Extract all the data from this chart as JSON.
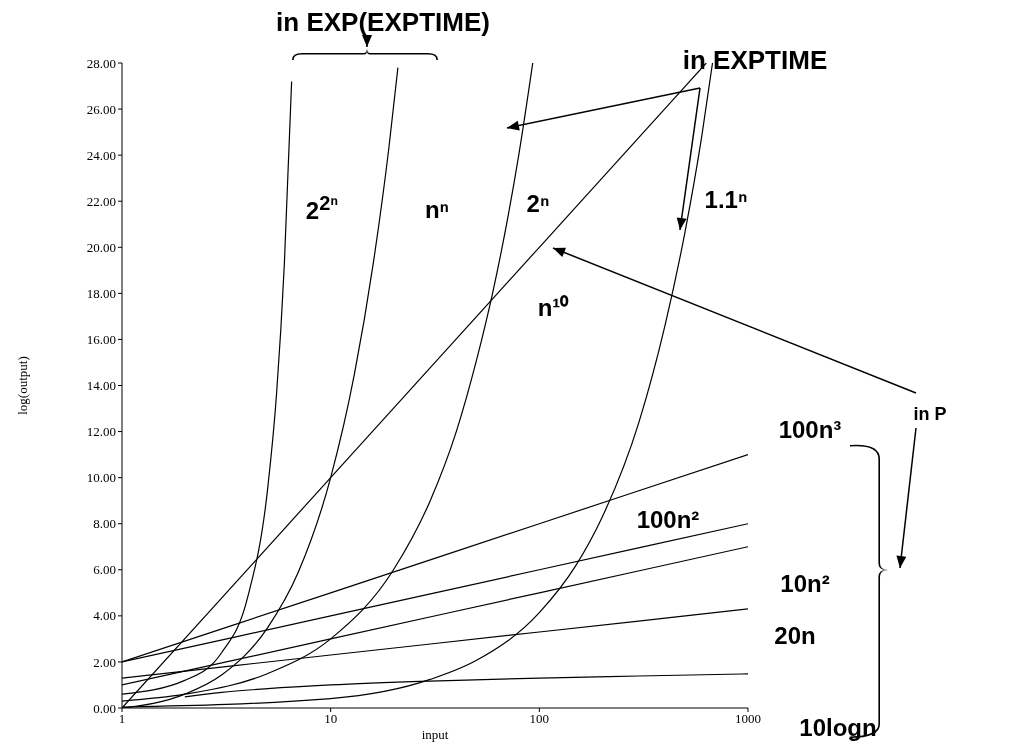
{
  "chart_data": {
    "type": "line",
    "xlabel": "input",
    "ylabel": "log(output)",
    "log": "x",
    "grid": false,
    "marker": "none",
    "line_style": "solid",
    "xlim": [
      1,
      1000
    ],
    "xticks": [
      1,
      10,
      100,
      1000
    ],
    "ylim": [
      0,
      28
    ],
    "yticks": [
      {
        "value": 0,
        "label": "0.00"
      },
      {
        "value": 2,
        "label": "2.00"
      },
      {
        "value": 4,
        "label": "4.00"
      },
      {
        "value": 6,
        "label": "6.00"
      },
      {
        "value": 8,
        "label": "8.00"
      },
      {
        "value": 10,
        "label": "10.00"
      },
      {
        "value": 12,
        "label": "12.00"
      },
      {
        "value": 14,
        "label": "14.00"
      },
      {
        "value": 16,
        "label": "16.00"
      },
      {
        "value": 18,
        "label": "18.00"
      },
      {
        "value": 20,
        "label": "20.00"
      },
      {
        "value": 22,
        "label": "22.00"
      },
      {
        "value": 24,
        "label": "24.00"
      },
      {
        "value": 26,
        "label": "26.00"
      },
      {
        "value": 28,
        "label": "28.00"
      }
    ],
    "series": [
      {
        "name": "2$^{2ⁿ}$",
        "color": "#000000",
        "x": [
          1,
          2,
          3,
          4,
          5,
          5.5,
          6,
          6.5
        ],
        "values": [
          0.6,
          1.2,
          2.4,
          4.8,
          9.6,
          13.6,
          19.3,
          27.2
        ]
      },
      {
        "name": "nⁿ",
        "color": "#000000",
        "x": [
          1,
          2,
          3,
          5,
          7,
          10,
          13,
          16,
          19,
          21
        ],
        "values": [
          0,
          0.6,
          1.43,
          3.5,
          5.9,
          10,
          14.5,
          19.3,
          24.3,
          27.8
        ]
      },
      {
        "name": "2ⁿ",
        "color": "#000000",
        "x": [
          1,
          2,
          5,
          10,
          20,
          30,
          40,
          50,
          60,
          70,
          80,
          93
        ],
        "values": [
          0.3,
          0.6,
          1.5,
          3,
          6,
          9,
          12,
          15.1,
          18.1,
          21.1,
          24.1,
          28
        ]
      },
      {
        "name": "n¹⁰",
        "color": "#000000",
        "x": [
          1,
          10,
          100,
          631
        ],
        "values": [
          0,
          10,
          20,
          28
        ]
      },
      {
        "name": "1.1ⁿ",
        "color": "#000000",
        "x": [
          1,
          10,
          30,
          50,
          100,
          150,
          200,
          300,
          400,
          500,
          600,
          676
        ],
        "values": [
          0.04,
          0.41,
          1.24,
          2.07,
          4.14,
          6.2,
          8.28,
          12.4,
          16.6,
          20.7,
          24.8,
          28
        ]
      },
      {
        "name": "100n³",
        "color": "#000000",
        "x": [
          1,
          10,
          100,
          1000
        ],
        "values": [
          2,
          5,
          8,
          11
        ]
      },
      {
        "name": "100n²",
        "color": "#000000",
        "x": [
          1,
          10,
          100,
          1000
        ],
        "values": [
          2,
          4,
          6,
          8
        ]
      },
      {
        "name": "10n²",
        "color": "#000000",
        "x": [
          1,
          10,
          100,
          1000
        ],
        "values": [
          1,
          3,
          5,
          7
        ]
      },
      {
        "name": "20n",
        "color": "#000000",
        "x": [
          1,
          10,
          100,
          1000
        ],
        "values": [
          1.3,
          2.3,
          3.3,
          4.3
        ]
      },
      {
        "name": "10logn",
        "color": "#000000",
        "x": [
          2,
          3,
          5,
          10,
          30,
          100,
          300,
          1000
        ],
        "values": [
          0.48,
          0.68,
          0.84,
          1,
          1.17,
          1.3,
          1.39,
          1.48
        ]
      }
    ],
    "annotations": [
      "in EXP(EXPTIME)",
      "in EXPTIME",
      "in P"
    ]
  }
}
